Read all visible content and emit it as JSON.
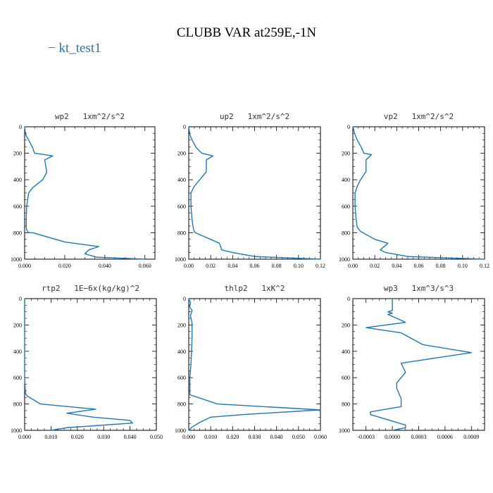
{
  "title": "CLUBB VAR at259E,-1N",
  "legend": {
    "marker": "−",
    "label": "kt_test1",
    "color": "#1f77b4"
  },
  "chart_data": [
    {
      "type": "line",
      "title": "wp2   1xm^2/s^2",
      "xlim": [
        0,
        0.065
      ],
      "ylim": [
        1000,
        0
      ],
      "xticks": [
        0,
        0.02,
        0.04,
        0.06
      ],
      "xtick_labels": [
        "0.000",
        "0.020",
        "0.040",
        "0.060"
      ],
      "yticks": [
        0,
        200,
        400,
        600,
        800,
        1000
      ],
      "ytick_labels": [
        "0",
        "200",
        "400",
        "600",
        "800",
        "1000"
      ],
      "series": [
        {
          "name": "kt_test1",
          "x": [
            0.0,
            0.0005,
            0.002,
            0.004,
            0.005,
            0.014,
            0.01,
            0.011,
            0.011,
            0.009,
            0.004,
            0.002,
            0.001,
            0.0008,
            0.0008,
            0.001,
            0.002,
            0.004,
            0.02,
            0.037,
            0.032,
            0.03,
            0.036,
            0.06
          ],
          "y": [
            0,
            60,
            100,
            160,
            200,
            220,
            250,
            340,
            345,
            400,
            460,
            500,
            600,
            700,
            760,
            780,
            800,
            800,
            870,
            905,
            930,
            960,
            985,
            1000
          ]
        }
      ]
    },
    {
      "type": "line",
      "title": "up2   1xm^2/s^2",
      "xlim": [
        0,
        0.12
      ],
      "ylim": [
        1000,
        0
      ],
      "xticks": [
        0,
        0.02,
        0.04,
        0.06,
        0.08,
        0.1,
        0.12
      ],
      "xtick_labels": [
        "0.00",
        "0.02",
        "0.04",
        "0.06",
        "0.08",
        "0.10",
        "0.12"
      ],
      "yticks": [
        0,
        200,
        400,
        600,
        800,
        1000
      ],
      "ytick_labels": [
        "0",
        "200",
        "400",
        "600",
        "800",
        "1000"
      ],
      "series": [
        {
          "name": "kt_test1",
          "x": [
            0.0,
            0.001,
            0.003,
            0.007,
            0.012,
            0.022,
            0.016,
            0.016,
            0.015,
            0.01,
            0.005,
            0.002,
            0.002,
            0.003,
            0.004,
            0.005,
            0.006,
            0.028,
            0.03,
            0.04,
            0.06,
            0.12
          ],
          "y": [
            0,
            60,
            100,
            160,
            200,
            220,
            250,
            340,
            350,
            400,
            450,
            500,
            600,
            700,
            760,
            790,
            800,
            880,
            930,
            950,
            980,
            1000
          ]
        }
      ]
    },
    {
      "type": "line",
      "title": "vp2   1xm^2/s^2",
      "xlim": [
        0,
        0.12
      ],
      "ylim": [
        1000,
        0
      ],
      "xticks": [
        0,
        0.02,
        0.04,
        0.06,
        0.08,
        0.1,
        0.12
      ],
      "xtick_labels": [
        "0.00",
        "0.02",
        "0.04",
        "0.06",
        "0.08",
        "0.10",
        "0.12"
      ],
      "yticks": [
        0,
        200,
        400,
        600,
        800,
        1000
      ],
      "ytick_labels": [
        "0",
        "200",
        "400",
        "600",
        "800",
        "1000"
      ],
      "series": [
        {
          "name": "kt_test1",
          "x": [
            0.0,
            0.002,
            0.004,
            0.008,
            0.01,
            0.017,
            0.012,
            0.012,
            0.011,
            0.007,
            0.004,
            0.002,
            0.002,
            0.003,
            0.004,
            0.007,
            0.02,
            0.032,
            0.025,
            0.03,
            0.05,
            0.12
          ],
          "y": [
            0,
            60,
            100,
            160,
            200,
            210,
            250,
            340,
            350,
            400,
            450,
            500,
            600,
            700,
            760,
            790,
            850,
            880,
            930,
            950,
            980,
            1000
          ]
        }
      ]
    },
    {
      "type": "line",
      "title": "rtp2   1E−6x(kg/kg)^2",
      "xlim": [
        0,
        0.05
      ],
      "ylim": [
        1000,
        0
      ],
      "xticks": [
        0,
        0.01,
        0.02,
        0.03,
        0.04,
        0.05
      ],
      "xtick_labels": [
        "0.000",
        "0.010",
        "0.020",
        "0.030",
        "0.040",
        "0.050"
      ],
      "yticks": [
        0,
        200,
        400,
        600,
        800,
        1000
      ],
      "ytick_labels": [
        "0",
        "200",
        "400",
        "600",
        "800",
        "1000"
      ],
      "series": [
        {
          "name": "kt_test1",
          "x": [
            0.0,
            0.0,
            0.0,
            0.0,
            0.0003,
            0.001,
            0.006,
            0.027,
            0.016,
            0.026,
            0.04,
            0.041,
            0.016,
            0.01
          ],
          "y": [
            0,
            200,
            400,
            600,
            720,
            740,
            800,
            840,
            870,
            900,
            925,
            945,
            980,
            1000
          ]
        }
      ]
    },
    {
      "type": "line",
      "title": "thlp2   1xK^2",
      "xlim": [
        0,
        0.06
      ],
      "ylim": [
        1000,
        0
      ],
      "xticks": [
        0,
        0.01,
        0.02,
        0.03,
        0.04,
        0.05,
        0.06
      ],
      "xtick_labels": [
        "0.000",
        "0.010",
        "0.020",
        "0.030",
        "0.040",
        "0.050",
        "0.060"
      ],
      "yticks": [
        0,
        200,
        400,
        600,
        800,
        1000
      ],
      "ytick_labels": [
        "0",
        "200",
        "400",
        "600",
        "800",
        "1000"
      ],
      "series": [
        {
          "name": "kt_test1",
          "x": [
            0.0,
            0.0008,
            0.0003,
            0.0015,
            0.0008,
            0.0015,
            0.0015,
            0.001,
            0.0005,
            0.0005,
            0.013,
            0.06,
            0.025,
            0.01,
            0.005,
            0.0015,
            0.0
          ],
          "y": [
            0,
            30,
            60,
            90,
            130,
            190,
            300,
            500,
            600,
            730,
            800,
            845,
            880,
            900,
            940,
            975,
            1000
          ]
        }
      ]
    },
    {
      "type": "line",
      "title": "wp3   1xm^3/s^3",
      "xlim": [
        -0.00045,
        0.00105
      ],
      "ylim": [
        1000,
        0
      ],
      "xticks": [
        -0.0003,
        0.0,
        0.0003,
        0.0006,
        0.0009
      ],
      "xtick_labels": [
        "-0.0003",
        "0.0000",
        "0.0003",
        "0.0006",
        "0.0009"
      ],
      "yticks": [
        0,
        200,
        400,
        600,
        800,
        1000
      ],
      "ytick_labels": [
        "0",
        "200",
        "400",
        "600",
        "800",
        "1000"
      ],
      "series": [
        {
          "name": "kt_test1",
          "x": [
            0.0,
            0.0,
            -5e-05,
            0.0,
            -5e-05,
            0.00015,
            -0.0003,
            0.0001,
            0.00035,
            0.0009,
            0.0001,
            0.00015,
            0.0001,
            5e-05,
            5e-05,
            0.0001,
            0.0001,
            -0.00025,
            -0.00025,
            0.00015,
            0.00015,
            0.0
          ],
          "y": [
            0,
            90,
            100,
            110,
            120,
            180,
            220,
            260,
            350,
            410,
            490,
            560,
            600,
            640,
            680,
            760,
            820,
            860,
            880,
            960,
            980,
            1000
          ]
        }
      ]
    }
  ]
}
